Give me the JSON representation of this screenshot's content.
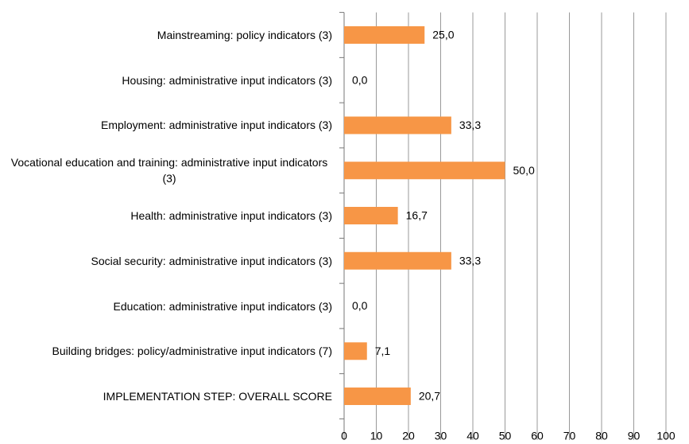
{
  "chart_data": {
    "type": "bar",
    "orientation": "horizontal",
    "categories": [
      "Mainstreaming: policy indicators (3)",
      "Housing: administrative input indicators (3)",
      "Employment: administrative input indicators (3)",
      "Vocational education and training: administrative input indicators (3)",
      "Health: administrative input indicators (3)",
      "Social security: administrative input indicators (3)",
      "Education: administrative input indicators (3)",
      "Building bridges: policy/administrative input indicators (7)",
      "IMPLEMENTATION STEP: OVERALL SCORE"
    ],
    "values": [
      25.0,
      0.0,
      33.3,
      50.0,
      16.7,
      33.3,
      0.0,
      7.1,
      20.7
    ],
    "value_labels": [
      "25,0",
      "0,0",
      "33,3",
      "50,0",
      "16,7",
      "33,3",
      "0,0",
      "7,1",
      "20,7"
    ],
    "color": "#f79646",
    "xlim": [
      0,
      100
    ],
    "xticks": [
      0,
      10,
      20,
      30,
      40,
      50,
      60,
      70,
      80,
      90,
      100
    ],
    "grid": true
  }
}
